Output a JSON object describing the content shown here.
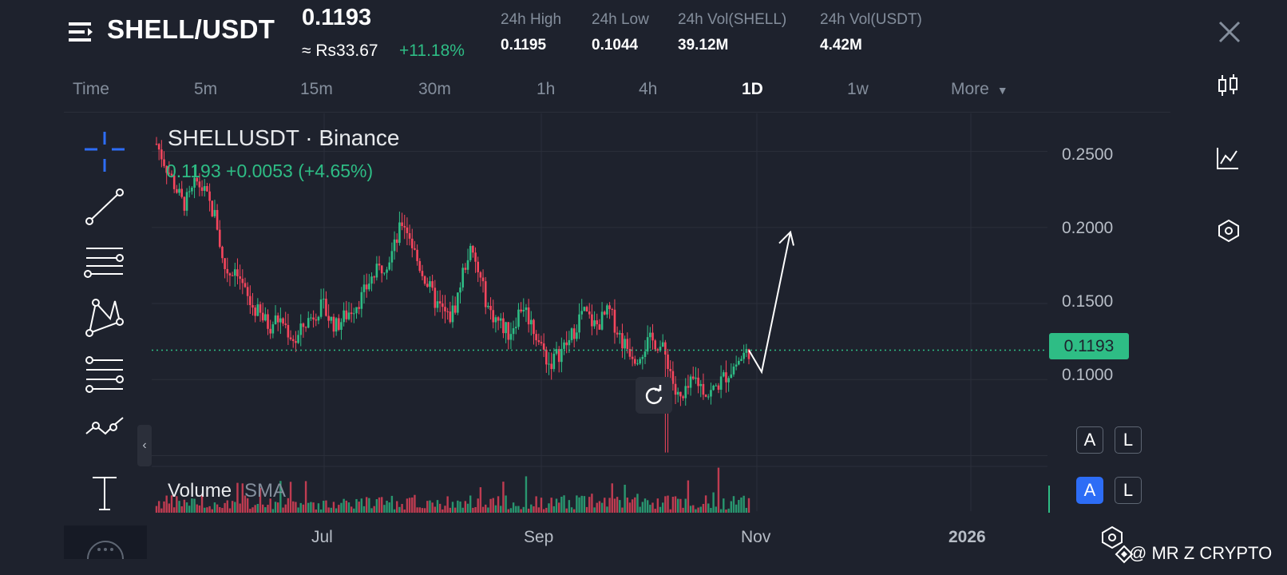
{
  "header": {
    "pair": "SHELL/USDT",
    "last_price": "0.1193",
    "approx_local": "≈ Rs33.67",
    "change_pct": "+11.18%",
    "stats": [
      {
        "label": "24h High",
        "value": "0.1195"
      },
      {
        "label": "24h Low",
        "value": "0.1044"
      },
      {
        "label": "24h Vol(SHELL)",
        "value": "39.12M"
      },
      {
        "label": "24h Vol(USDT)",
        "value": "4.42M"
      }
    ]
  },
  "timeframes": [
    "Time",
    "5m",
    "15m",
    "30m",
    "1h",
    "4h",
    "1D",
    "1w",
    "More"
  ],
  "active_timeframe": "1D",
  "legend": {
    "symbol": "SHELLUSDT · Binance",
    "values": "0.1193  +0.0053 (+4.65%)",
    "volume_label": "Volume",
    "volume_indicator": "SMA"
  },
  "current_price_tag": "0.1193",
  "scale_buttons": {
    "auto": "A",
    "log": "L"
  },
  "watermark": "@ MR Z CRYPTO",
  "colors": {
    "up": "#2ebd85",
    "down": "#f6465d",
    "bg": "#1e222d",
    "accent": "#2d6df6"
  },
  "left_tools": [
    "crosshair-icon",
    "trend-line-icon",
    "horizontal-lines-icon",
    "pattern-icon",
    "fib-icon",
    "path-icon",
    "text-icon"
  ],
  "right_tools": [
    "candle-type-icon",
    "indicators-icon",
    "settings-hex-icon"
  ],
  "chart_data": {
    "type": "candlestick",
    "y_ticks": [
      "0.2500",
      "0.2000",
      "0.1500",
      "0.1000"
    ],
    "ylim": [
      0.045,
      0.275
    ],
    "x_ticks": [
      "Jul",
      "Sep",
      "Nov",
      "2026"
    ],
    "current_price": 0.1193,
    "approx_close_path": [
      0.255,
      0.245,
      0.235,
      0.225,
      0.215,
      0.22,
      0.23,
      0.225,
      0.215,
      0.205,
      0.175,
      0.17,
      0.175,
      0.16,
      0.15,
      0.145,
      0.14,
      0.135,
      0.14,
      0.138,
      0.13,
      0.125,
      0.135,
      0.14,
      0.145,
      0.148,
      0.14,
      0.135,
      0.14,
      0.145,
      0.15,
      0.155,
      0.165,
      0.17,
      0.175,
      0.18,
      0.19,
      0.205,
      0.195,
      0.18,
      0.17,
      0.16,
      0.15,
      0.145,
      0.14,
      0.15,
      0.17,
      0.185,
      0.175,
      0.16,
      0.145,
      0.14,
      0.135,
      0.13,
      0.14,
      0.15,
      0.14,
      0.13,
      0.12,
      0.11,
      0.115,
      0.12,
      0.125,
      0.135,
      0.145,
      0.14,
      0.135,
      0.14,
      0.145,
      0.135,
      0.125,
      0.12,
      0.115,
      0.12,
      0.125,
      0.125,
      0.12,
      0.11,
      0.09,
      0.085,
      0.095,
      0.1,
      0.095,
      0.09,
      0.095,
      0.1,
      0.105,
      0.11,
      0.115,
      0.1193
    ],
    "projection": [
      0.1193,
      0.105,
      0.197
    ]
  }
}
